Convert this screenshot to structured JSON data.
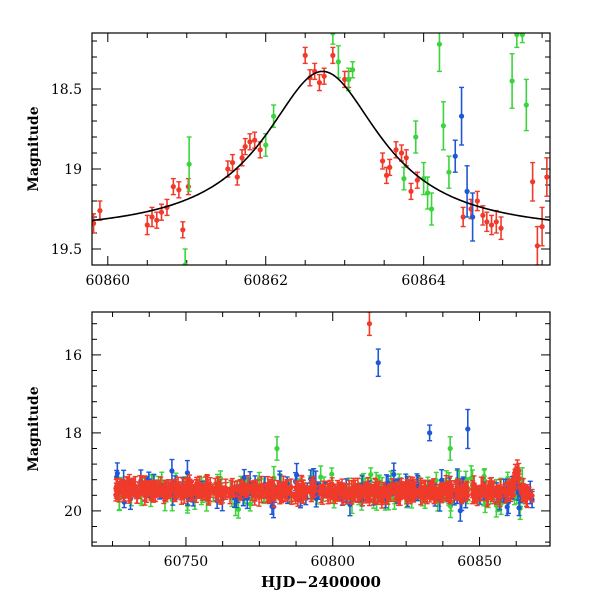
{
  "chart_data": [
    {
      "type": "scatter",
      "ylabel": "Magnitude",
      "xlabel": "",
      "xlim": [
        60859.8,
        60865.6
      ],
      "ylim": [
        19.6,
        18.15
      ],
      "y_inverted": true,
      "xticks": [
        60860,
        60862,
        60864
      ],
      "xtick_labels": [
        "60860",
        "60862",
        "60864"
      ],
      "yticks": [
        18.5,
        19,
        19.5
      ],
      "ytick_labels": [
        "18.5",
        "19",
        "19.5"
      ],
      "model_curve": {
        "type": "lorentzian",
        "t0": 60862.72,
        "baseline": 19.41,
        "amplitude": 1.02,
        "width": 0.9,
        "color": "#000000"
      },
      "series": [
        {
          "color": "#f03a2a",
          "points": [
            [
              60859.82,
              19.34,
              0.06
            ],
            [
              60859.9,
              19.26,
              0.06
            ],
            [
              60860.5,
              19.35,
              0.06
            ],
            [
              60860.56,
              19.3,
              0.06
            ],
            [
              60860.62,
              19.32,
              0.05
            ],
            [
              60860.68,
              19.27,
              0.05
            ],
            [
              60860.75,
              19.24,
              0.05
            ],
            [
              60860.83,
              19.11,
              0.05
            ],
            [
              60860.9,
              19.13,
              0.05
            ],
            [
              60860.95,
              19.38,
              0.05
            ],
            [
              60861.02,
              19.11,
              0.05
            ],
            [
              60861.52,
              19.0,
              0.05
            ],
            [
              60861.58,
              18.96,
              0.05
            ],
            [
              60861.64,
              19.05,
              0.05
            ],
            [
              60861.7,
              18.93,
              0.05
            ],
            [
              60861.74,
              18.86,
              0.05
            ],
            [
              60861.8,
              18.83,
              0.05
            ],
            [
              60861.86,
              18.82,
              0.05
            ],
            [
              60861.93,
              18.88,
              0.05
            ],
            [
              60862.5,
              18.29,
              0.05
            ],
            [
              60862.56,
              18.43,
              0.05
            ],
            [
              60862.62,
              18.39,
              0.05
            ],
            [
              60862.68,
              18.46,
              0.05
            ],
            [
              60862.74,
              18.42,
              0.05
            ],
            [
              60862.85,
              18.29,
              0.05
            ],
            [
              60863.0,
              18.44,
              0.05
            ],
            [
              60863.05,
              18.44,
              0.05
            ],
            [
              60863.48,
              18.95,
              0.05
            ],
            [
              60863.53,
              19.04,
              0.05
            ],
            [
              60863.57,
              18.99,
              0.05
            ],
            [
              60863.65,
              18.88,
              0.05
            ],
            [
              60863.72,
              18.9,
              0.05
            ],
            [
              60863.78,
              18.93,
              0.05
            ],
            [
              60863.84,
              19.14,
              0.05
            ],
            [
              60863.92,
              19.07,
              0.05
            ],
            [
              60864.5,
              19.3,
              0.06
            ],
            [
              60864.6,
              19.25,
              0.06
            ],
            [
              60864.68,
              19.2,
              0.06
            ],
            [
              60864.75,
              19.29,
              0.06
            ],
            [
              60864.8,
              19.33,
              0.06
            ],
            [
              60864.86,
              19.35,
              0.06
            ],
            [
              60864.92,
              19.33,
              0.07
            ],
            [
              60864.98,
              19.37,
              0.07
            ],
            [
              60865.38,
              19.08,
              0.12
            ],
            [
              60865.44,
              19.48,
              0.12
            ],
            [
              60865.5,
              19.36,
              0.12
            ],
            [
              60865.56,
              19.05,
              0.12
            ]
          ]
        },
        {
          "color": "#3cd43c",
          "points": [
            [
              60861.03,
              18.97,
              0.17
            ],
            [
              60860.98,
              19.6,
              0.1
            ],
            [
              60862.0,
              18.85,
              0.07
            ],
            [
              60862.1,
              18.67,
              0.07
            ],
            [
              60862.85,
              18.15,
              0.07
            ],
            [
              60862.92,
              18.33,
              0.1
            ],
            [
              60863.05,
              18.44,
              0.07
            ],
            [
              60863.1,
              18.38,
              0.05
            ],
            [
              60863.75,
              19.06,
              0.07
            ],
            [
              60863.9,
              18.8,
              0.1
            ],
            [
              60864.0,
              19.06,
              0.1
            ],
            [
              60864.05,
              19.15,
              0.1
            ],
            [
              60864.1,
              19.25,
              0.1
            ],
            [
              60864.2,
              18.22,
              0.17
            ],
            [
              60864.25,
              18.73,
              0.15
            ],
            [
              60864.32,
              19.02,
              0.1
            ],
            [
              60865.12,
              18.45,
              0.17
            ],
            [
              60865.18,
              18.16,
              0.08
            ],
            [
              60865.25,
              18.16,
              0.05
            ],
            [
              60865.3,
              18.6,
              0.16
            ]
          ]
        },
        {
          "color": "#1f57d6",
          "points": [
            [
              60864.4,
              18.92,
              0.1
            ],
            [
              60864.48,
              18.67,
              0.18
            ],
            [
              60864.55,
              19.14,
              0.16
            ],
            [
              60864.62,
              19.3,
              0.15
            ]
          ]
        }
      ]
    },
    {
      "type": "scatter",
      "ylabel": "Magnitude",
      "xlabel": "HJD−2400000",
      "xlim": [
        60718,
        60874
      ],
      "ylim": [
        20.9,
        14.9
      ],
      "y_inverted": true,
      "xticks": [
        60750,
        60800,
        60850
      ],
      "xtick_labels": [
        "60750",
        "60800",
        "60850"
      ],
      "yticks": [
        16,
        18,
        20
      ],
      "ytick_labels": [
        "16",
        "18",
        "20"
      ],
      "series": [
        {
          "color": "#3cd43c",
          "style": "dense"
        },
        {
          "color": "#1f57d6",
          "style": "dense"
        },
        {
          "color": "#f03a2a",
          "style": "dense"
        }
      ],
      "outliers": [
        {
          "color": "#f03a2a",
          "x": 60812.5,
          "y": 15.2,
          "err": 0.3
        },
        {
          "color": "#1f57d6",
          "x": 60815.5,
          "y": 16.2,
          "err": 0.35
        },
        {
          "color": "#1f57d6",
          "x": 60833,
          "y": 18.0,
          "err": 0.2
        },
        {
          "color": "#1f57d6",
          "x": 60846,
          "y": 17.9,
          "err": 0.5
        },
        {
          "color": "#3cd43c",
          "x": 60840,
          "y": 18.4,
          "err": 0.3
        },
        {
          "color": "#3cd43c",
          "x": 60781,
          "y": 18.4,
          "err": 0.3
        }
      ]
    }
  ]
}
